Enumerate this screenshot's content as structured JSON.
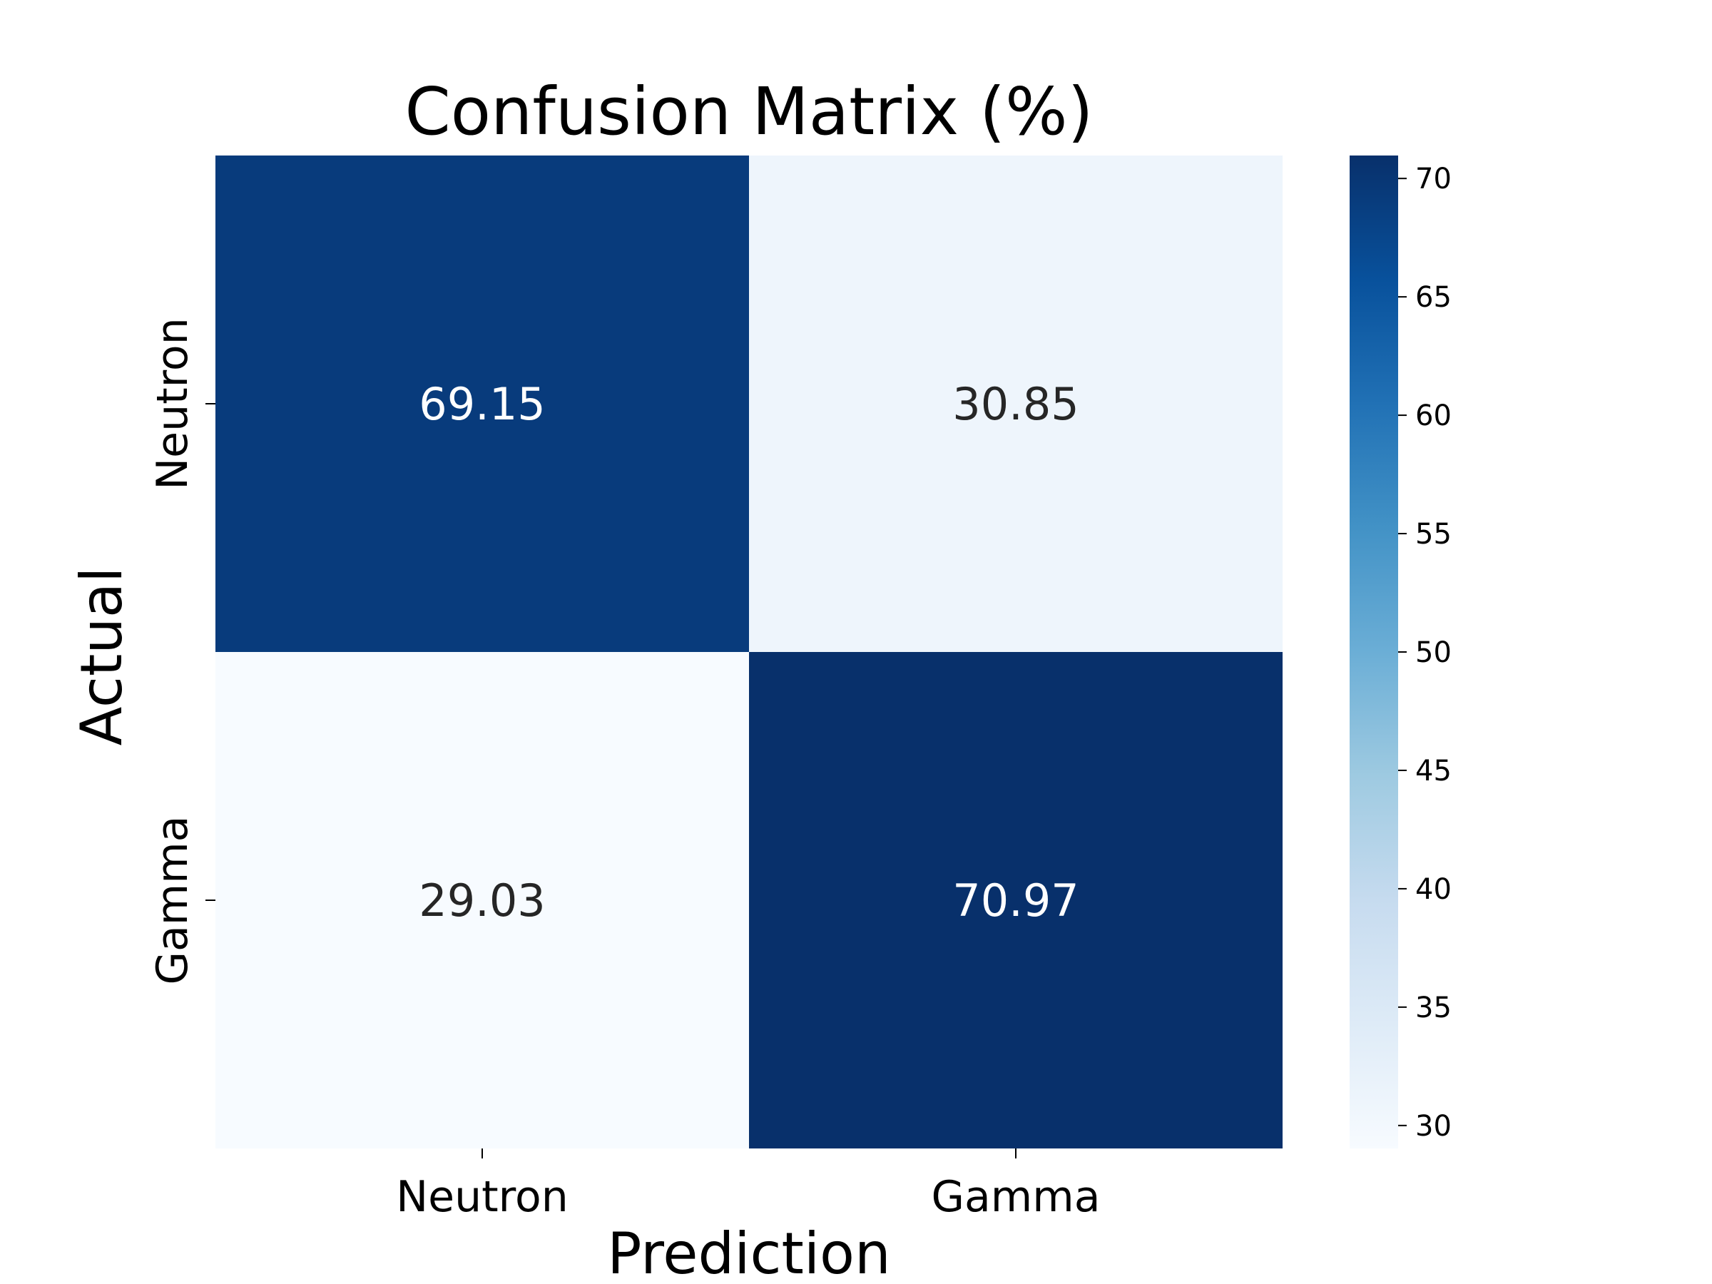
{
  "chart_data": {
    "type": "heatmap",
    "title": "Confusion Matrix (%)",
    "xlabel": "Prediction",
    "ylabel": "Actual",
    "x_categories": [
      "Neutron",
      "Gamma"
    ],
    "y_categories": [
      "Neutron",
      "Gamma"
    ],
    "values": [
      [
        69.15,
        30.85
      ],
      [
        29.03,
        70.97
      ]
    ],
    "value_labels": [
      [
        "69.15",
        "30.85"
      ],
      [
        "29.03",
        "70.97"
      ]
    ],
    "colorbar": {
      "range": [
        29.03,
        70.97
      ],
      "ticks": [
        30,
        35,
        40,
        45,
        50,
        55,
        60,
        65,
        70
      ],
      "tick_labels": [
        "30",
        "35",
        "40",
        "45",
        "50",
        "55",
        "60",
        "65",
        "70"
      ]
    },
    "colormap": "Blues",
    "colormap_stops": [
      "#f7fbff",
      "#deebf7",
      "#c6dbef",
      "#9ecae1",
      "#6baed6",
      "#4292c6",
      "#2171b5",
      "#08519c",
      "#08306b"
    ],
    "annotation_colors": {
      "light": "#ffffff",
      "dark": "#262626"
    },
    "grid": false,
    "legend": "none"
  }
}
